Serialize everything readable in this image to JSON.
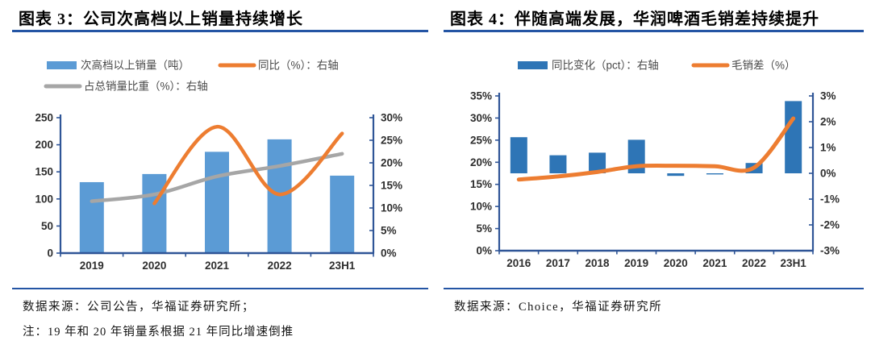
{
  "page": {
    "background": "#ffffff",
    "rule_color": "#2455A4"
  },
  "colors": {
    "axis": "#2F5597",
    "tick_text": "#2e2e2e",
    "legend_text": "#4a4a4a",
    "left_bar_blue": "#5B9BD5",
    "right_bar_blue": "#2E75B6",
    "orange": "#ED7D31",
    "gray": "#A6A6A6"
  },
  "figures": [
    {
      "title": "图表 3：公司次高档以上销量持续增长",
      "source": "数据来源：公司公告，华福证券研究所；",
      "note": "注：19 年和 20 年销量系根据 21 年同比增速倒推"
    },
    {
      "title": "图表 4：伴随高端发展，华润啤酒毛销差持续提升",
      "source": "数据来源：Choice，华福证券研究所",
      "note": ""
    }
  ],
  "chart_data": [
    {
      "type": "combo-bar-line",
      "title": "公司次高档以上销量持续增长",
      "legend_position": "top",
      "grid": false,
      "categories": [
        "2019",
        "2020",
        "2021",
        "2022",
        "23H1"
      ],
      "bar_series": [
        {
          "name": "次高档以上销量（吨）",
          "axis": "left",
          "color": "#5B9BD5",
          "values": [
            131,
            146,
            187,
            210,
            143
          ]
        }
      ],
      "line_series": [
        {
          "name": "同比（%）：右轴",
          "axis": "right",
          "color": "#ED7D31",
          "smooth": true,
          "values": [
            null,
            11,
            28,
            13,
            26.5
          ]
        },
        {
          "name": "占总销量比重（%）：右轴",
          "axis": "right",
          "color": "#A6A6A6",
          "smooth": true,
          "values": [
            11.5,
            13,
            17,
            19.3,
            22
          ]
        }
      ],
      "left_axis": {
        "min": 0,
        "max": 250,
        "step": 50,
        "tick_labels": [
          "0",
          "50",
          "100",
          "150",
          "200",
          "250"
        ]
      },
      "right_axis": {
        "min": 0,
        "max": 30,
        "step": 5,
        "tick_labels": [
          "0%",
          "5%",
          "10%",
          "15%",
          "20%",
          "25%",
          "30%"
        ]
      }
    },
    {
      "type": "combo-bar-line",
      "title": "伴随高端发展，华润啤酒毛销差持续提升",
      "legend_position": "top",
      "grid": false,
      "categories": [
        "2016",
        "2017",
        "2018",
        "2019",
        "2020",
        "2021",
        "2022",
        "23H1"
      ],
      "bar_series": [
        {
          "name": "同比变化（pct）：右轴",
          "axis": "right",
          "color": "#2E75B6",
          "values": [
            1.4,
            0.7,
            0.8,
            1.3,
            -0.1,
            -0.04,
            0.4,
            2.8
          ]
        }
      ],
      "line_series": [
        {
          "name": "毛销差（%）",
          "axis": "left",
          "color": "#ED7D31",
          "smooth": true,
          "values": [
            16.1,
            16.8,
            17.8,
            19.1,
            19.2,
            19.1,
            18.8,
            29.9
          ]
        }
      ],
      "left_axis": {
        "min": 0,
        "max": 35,
        "step": 5,
        "tick_labels": [
          "0%",
          "5%",
          "10%",
          "15%",
          "20%",
          "25%",
          "30%",
          "35%"
        ]
      },
      "right_axis": {
        "min": -3,
        "max": 3,
        "step": 1,
        "tick_labels": [
          "-3%",
          "-2%",
          "-1%",
          "0%",
          "1%",
          "2%",
          "3%"
        ]
      }
    }
  ]
}
